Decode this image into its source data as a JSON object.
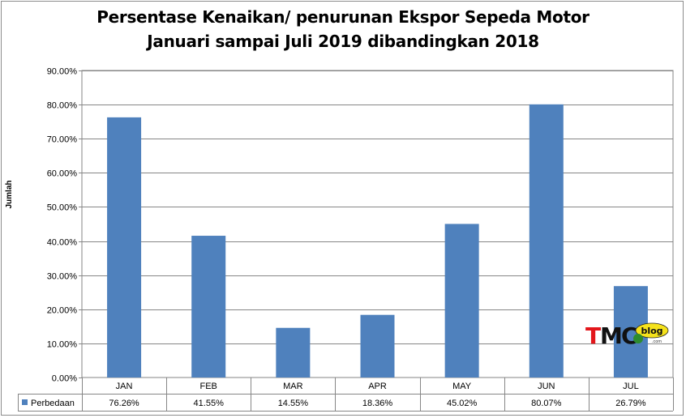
{
  "title_line1": "Persentase Kenaikan/ penurunan Ekspor Sepeda Motor",
  "title_line2": "Januari sampai Juli 2019 dibandingkan 2018",
  "colors": {
    "bar": "#4f81bd",
    "grid": "#868686",
    "axis": "#868686"
  },
  "logo": {
    "text_main": "TMC",
    "text_sub": "blog"
  },
  "chart_data": {
    "type": "bar",
    "title": "Persentase Kenaikan/ penurunan Ekspor Sepeda Motor Januari sampai Juli 2019 dibandingkan 2018",
    "xlabel": "",
    "ylabel": "Jumlah",
    "ylim": [
      0,
      90
    ],
    "yticks": [
      "0.00%",
      "10.00%",
      "20.00%",
      "30.00%",
      "40.00%",
      "50.00%",
      "60.00%",
      "70.00%",
      "80.00%",
      "90.00%"
    ],
    "categories": [
      "JAN",
      "FEB",
      "MAR",
      "APR",
      "MAY",
      "JUN",
      "JUL"
    ],
    "series": [
      {
        "name": "Perbedaan",
        "values": [
          76.26,
          41.55,
          14.55,
          18.36,
          45.02,
          80.07,
          26.79
        ],
        "labels": [
          "76.26%",
          "41.55%",
          "14.55%",
          "18.36%",
          "45.02%",
          "80.07%",
          "26.79%"
        ]
      }
    ],
    "grid": true,
    "legend": "data-table"
  }
}
